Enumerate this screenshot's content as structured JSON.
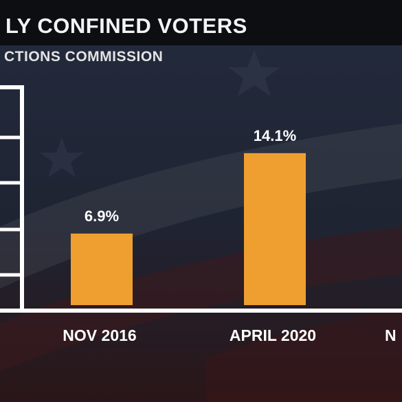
{
  "header": {
    "title": "LY CONFINED VOTERS",
    "subtitle": "CTIONS COMMISSION"
  },
  "colors": {
    "bar": "#ee9f30",
    "axis": "#ffffff",
    "label": "#ffffff",
    "title_bar": "#0c0e12"
  },
  "chart_data": {
    "type": "bar",
    "title": "LY CONFINED VOTERS",
    "subtitle": "CTIONS COMMISSION",
    "categories": [
      "NOV 2016",
      "APRIL 2020",
      "N"
    ],
    "values": [
      6.9,
      14.1,
      null
    ],
    "data_labels": [
      "6.9%",
      "14.1%",
      ""
    ],
    "ylim": [
      0,
      20
    ],
    "grid": false,
    "legend": "none"
  }
}
